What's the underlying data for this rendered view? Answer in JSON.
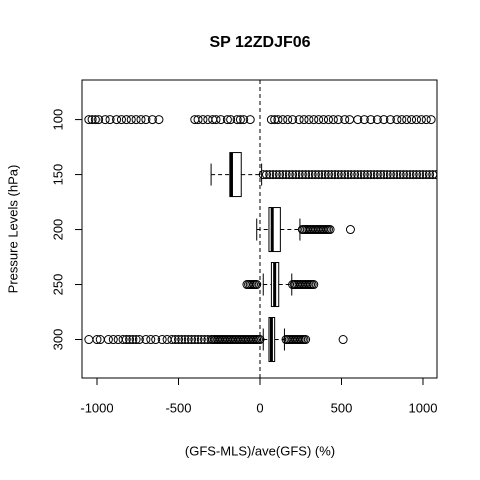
{
  "chart_data": {
    "type": "boxplot",
    "orientation": "horizontal",
    "title": "SP 12ZDJF06",
    "x_label": "(GFS-MLS)/ave(GFS) (%)",
    "y_label": "Pressure Levels (hPa)",
    "categories": [
      100,
      150,
      200,
      250,
      300
    ],
    "xlim": [
      -1092,
      1086
    ],
    "xticks": [
      -1000,
      -500,
      0,
      500,
      1000
    ],
    "ylim": [
      64,
      335
    ],
    "y_reversed": true,
    "yticks": [
      100,
      150,
      200,
      250,
      300
    ],
    "reference_line_x": 0,
    "color": "#000000",
    "boxes": [
      {
        "whislo": null,
        "q1": null,
        "med": null,
        "q3": null,
        "whishi": null,
        "fliers": [
          -1050,
          -1030,
          -1010,
          -990,
          -950,
          -920,
          -880,
          -850,
          -820,
          -790,
          -760,
          -730,
          -700,
          -660,
          -620,
          -400,
          -380,
          -350,
          -320,
          -290,
          -270,
          -240,
          -200,
          -180,
          -140,
          -120,
          -100,
          -60,
          70,
          90,
          110,
          140,
          170,
          200,
          240,
          270,
          300,
          330,
          360,
          390,
          420,
          450,
          480,
          520,
          550,
          600,
          640,
          680,
          720,
          760,
          800,
          840,
          870,
          900,
          930,
          960,
          990,
          1020,
          1050
        ]
      },
      {
        "whislo": -300,
        "q1": -185,
        "med": -175,
        "q3": -115,
        "whishi": 10,
        "fliers": [
          20,
          40,
          60,
          80,
          100,
          120,
          140,
          160,
          180,
          200,
          220,
          240,
          260,
          280,
          300,
          320,
          340,
          360,
          380,
          400,
          420,
          440,
          460,
          480,
          500,
          520,
          540,
          560,
          580,
          600,
          620,
          640,
          660,
          680,
          700,
          720,
          740,
          760,
          780,
          800,
          820,
          840,
          860,
          880,
          900,
          920,
          940,
          960,
          980,
          1000,
          1020,
          1040,
          1060,
          1080
        ]
      },
      {
        "whislo": -20,
        "q1": 55,
        "med": 75,
        "q3": 125,
        "whishi": 245,
        "fliers": [
          260,
          270,
          280,
          290,
          300,
          310,
          320,
          330,
          340,
          350,
          360,
          370,
          380,
          390,
          400,
          410,
          420,
          430,
          555
        ]
      },
      {
        "whislo": 20,
        "q1": 70,
        "med": 90,
        "q3": 115,
        "whishi": 195,
        "fliers": [
          -80,
          -70,
          -60,
          -50,
          -40,
          -30,
          -20,
          200,
          210,
          220,
          230,
          240,
          250,
          260,
          270,
          280,
          290,
          300,
          310,
          320,
          330
        ]
      },
      {
        "whislo": 20,
        "q1": 55,
        "med": 70,
        "q3": 90,
        "whishi": 150,
        "fliers": [
          -1050,
          -1000,
          -980,
          -930,
          -900,
          -870,
          -840,
          -820,
          -800,
          -780,
          -760,
          -740,
          -700,
          -670,
          -640,
          -600,
          -570,
          -540,
          -520,
          -500,
          -480,
          -460,
          -440,
          -420,
          -400,
          -380,
          -360,
          -340,
          -320,
          -300,
          -290,
          -280,
          -270,
          -260,
          -250,
          -240,
          -230,
          -220,
          -210,
          -200,
          -190,
          -180,
          -170,
          -160,
          -150,
          -140,
          -130,
          -120,
          -110,
          -100,
          -90,
          -80,
          -70,
          -60,
          -50,
          -40,
          -30,
          -20,
          -10,
          0,
          160,
          170,
          180,
          190,
          200,
          210,
          220,
          230,
          240,
          250,
          260,
          270,
          280,
          510
        ]
      }
    ]
  }
}
